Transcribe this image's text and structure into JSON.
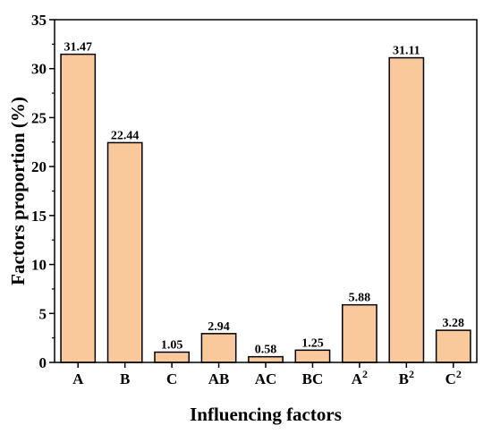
{
  "chart_data": {
    "type": "bar",
    "categories": [
      "A",
      "B",
      "C",
      "AB",
      "AC",
      "BC",
      "A²",
      "B²",
      "C²"
    ],
    "category_parts": [
      {
        "base": "A",
        "sup": ""
      },
      {
        "base": "B",
        "sup": ""
      },
      {
        "base": "C",
        "sup": ""
      },
      {
        "base": "AB",
        "sup": ""
      },
      {
        "base": "AC",
        "sup": ""
      },
      {
        "base": "BC",
        "sup": ""
      },
      {
        "base": "A",
        "sup": "2"
      },
      {
        "base": "B",
        "sup": "2"
      },
      {
        "base": "C",
        "sup": "2"
      }
    ],
    "values": [
      31.47,
      22.44,
      1.05,
      2.94,
      0.58,
      1.25,
      5.88,
      31.11,
      3.28
    ],
    "value_labels": [
      "31.47",
      "22.44",
      "1.05",
      "2.94",
      "0.58",
      "1.25",
      "5.88",
      "31.11",
      "3.28"
    ],
    "xlabel": "Influencing factors",
    "ylabel": "Factors proportion (%)",
    "ylim": [
      0,
      35
    ],
    "yticks": [
      0,
      5,
      10,
      15,
      20,
      25,
      30,
      35
    ],
    "grid": false,
    "legend": "none",
    "bar_color": "#F9C89B",
    "bar_edge_color": "#000000"
  }
}
